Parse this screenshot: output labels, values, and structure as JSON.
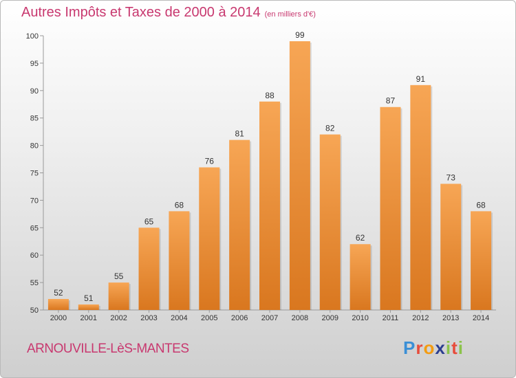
{
  "title": "Autres Impôts et Taxes de 2000 à 2014",
  "subtitle": "(en milliers d'€)",
  "commune": "ARNOUVILLE-LèS-MANTES",
  "logo": {
    "letters": [
      "P",
      "r",
      "o",
      "x",
      "i",
      "t",
      "i"
    ],
    "colors": [
      "#3a8fd6",
      "#e74c3c",
      "#f39c12",
      "#2c3e8f",
      "#8bc34a",
      "#e74c3c",
      "#8bc34a"
    ]
  },
  "colors": {
    "bar_top": "#f7a655",
    "bar_bottom": "#d9771f",
    "text": "#c8386f"
  },
  "chart_data": {
    "type": "bar",
    "categories": [
      "2000",
      "2001",
      "2002",
      "2003",
      "2004",
      "2005",
      "2006",
      "2007",
      "2008",
      "2009",
      "2010",
      "2011",
      "2012",
      "2013",
      "2014"
    ],
    "values": [
      52,
      51,
      55,
      65,
      68,
      76,
      81,
      88,
      99,
      82,
      62,
      87,
      91,
      73,
      68
    ],
    "ylim": [
      50,
      100
    ],
    "yticks": [
      50,
      55,
      60,
      65,
      70,
      75,
      80,
      85,
      90,
      95,
      100
    ],
    "grid": false
  }
}
